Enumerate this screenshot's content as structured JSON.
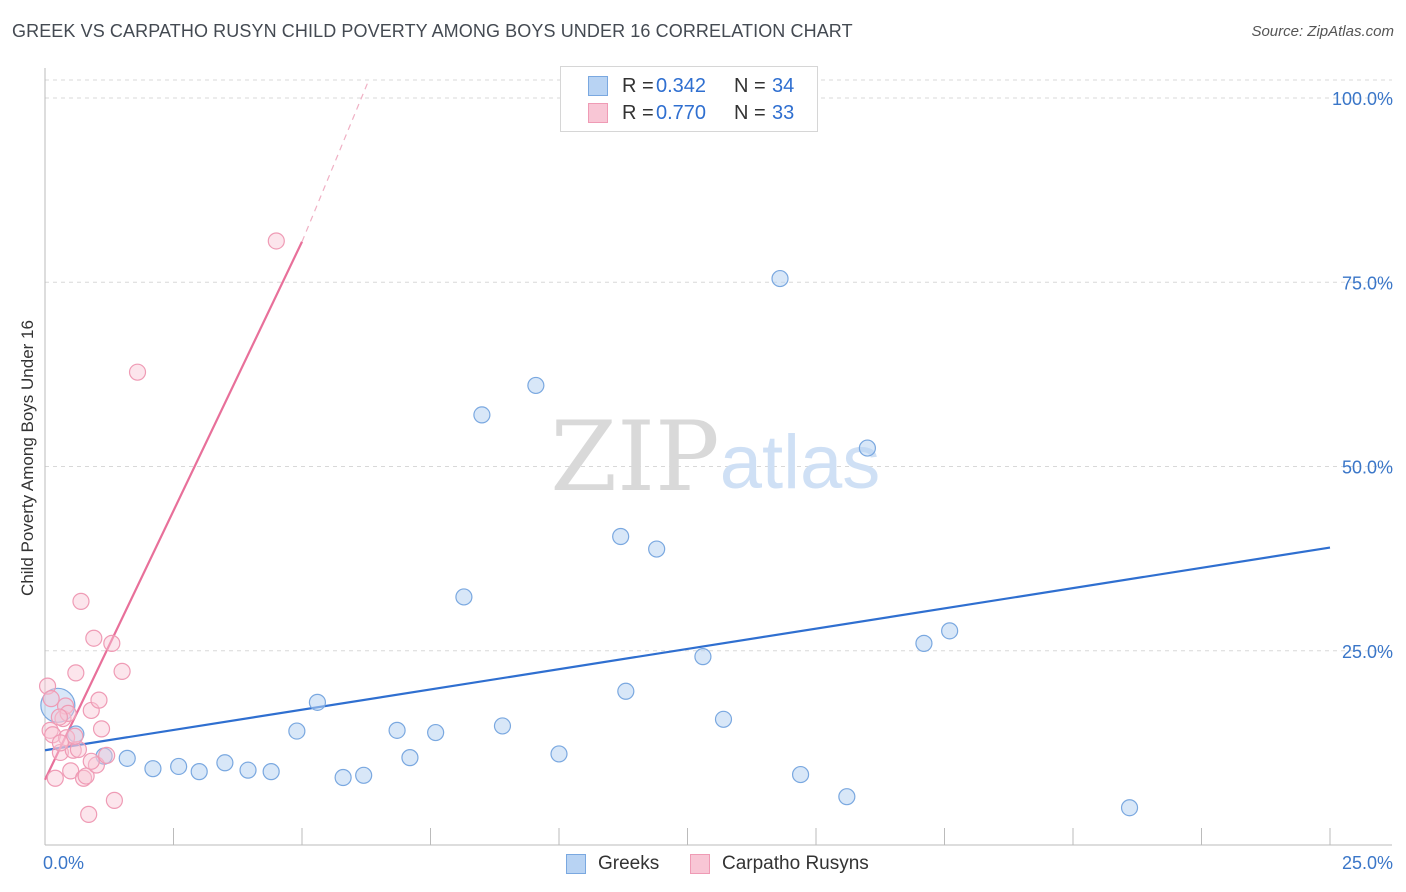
{
  "title": "GREEK VS CARPATHO RUSYN CHILD POVERTY AMONG BOYS UNDER 16 CORRELATION CHART",
  "source": "Source: ZipAtlas.com",
  "watermark": {
    "zip": "ZIP",
    "atlas": "atlas"
  },
  "legend": {
    "greeks": {
      "r_label": "R =",
      "r_value": "0.342",
      "n_label": "N =",
      "n_value": "34"
    },
    "rusyns": {
      "r_label": "R =",
      "r_value": "0.770",
      "n_label": "N =",
      "n_value": "33"
    }
  },
  "bottom_legend": {
    "greeks": "Greeks",
    "rusyns": "Carpatho Rusyns"
  },
  "colors": {
    "greeks_fill": "#b8d3f3",
    "greeks_stroke": "#7aa8e0",
    "greeks_line": "#2f6fd0",
    "rusyns_fill": "#f8c6d5",
    "rusyns_stroke": "#ef9bb5",
    "rusyns_line": "#e8709a",
    "tick_text": "#3a76c8"
  },
  "chart_data": {
    "type": "scatter",
    "title": "GREEK VS CARPATHO RUSYN CHILD POVERTY AMONG BOYS UNDER 16 CORRELATION CHART",
    "xlabel": "",
    "ylabel": "Child Poverty Among Boys Under 16",
    "xlim": [
      0,
      25
    ],
    "ylim": [
      0,
      100
    ],
    "x_tick_labels": [
      "0.0%",
      "25.0%"
    ],
    "y_ticks": [
      25,
      50,
      75,
      100
    ],
    "y_tick_labels": [
      "25.0%",
      "50.0%",
      "75.0%",
      "100.0%"
    ],
    "series": [
      {
        "name": "Greeks",
        "points": [
          [
            0.25,
            17.6
          ],
          [
            0.6,
            13.7
          ],
          [
            1.15,
            10.7
          ],
          [
            1.6,
            10.4
          ],
          [
            2.1,
            9.0
          ],
          [
            2.6,
            9.3
          ],
          [
            3.0,
            8.6
          ],
          [
            3.5,
            9.8
          ],
          [
            3.95,
            8.8
          ],
          [
            4.4,
            8.6
          ],
          [
            4.9,
            14.1
          ],
          [
            5.3,
            18.0
          ],
          [
            5.8,
            7.8
          ],
          [
            6.2,
            8.1
          ],
          [
            6.85,
            14.2
          ],
          [
            7.1,
            10.5
          ],
          [
            7.6,
            13.9
          ],
          [
            8.15,
            32.3
          ],
          [
            8.5,
            57.0
          ],
          [
            8.9,
            14.8
          ],
          [
            9.55,
            61.0
          ],
          [
            10.0,
            11.0
          ],
          [
            11.2,
            40.5
          ],
          [
            11.3,
            19.5
          ],
          [
            11.9,
            38.8
          ],
          [
            12.8,
            24.2
          ],
          [
            13.2,
            15.7
          ],
          [
            14.3,
            75.5
          ],
          [
            14.7,
            8.2
          ],
          [
            15.6,
            5.2
          ],
          [
            16.0,
            52.5
          ],
          [
            17.1,
            26.0
          ],
          [
            17.6,
            27.7
          ],
          [
            21.1,
            3.7
          ]
        ]
      },
      {
        "name": "Carpatho Rusyns",
        "points": [
          [
            0.05,
            20.2
          ],
          [
            0.1,
            14.2
          ],
          [
            0.15,
            13.6
          ],
          [
            0.2,
            7.7
          ],
          [
            0.3,
            11.2
          ],
          [
            0.35,
            15.8
          ],
          [
            0.4,
            17.5
          ],
          [
            0.45,
            16.5
          ],
          [
            0.5,
            8.7
          ],
          [
            0.55,
            11.5
          ],
          [
            0.6,
            22.0
          ],
          [
            0.65,
            11.6
          ],
          [
            0.7,
            31.7
          ],
          [
            0.75,
            7.7
          ],
          [
            0.8,
            8.0
          ],
          [
            0.85,
            2.8
          ],
          [
            0.9,
            16.9
          ],
          [
            0.95,
            26.7
          ],
          [
            1.0,
            9.5
          ],
          [
            1.05,
            18.3
          ],
          [
            1.1,
            14.4
          ],
          [
            1.2,
            10.8
          ],
          [
            1.3,
            26.0
          ],
          [
            1.35,
            4.7
          ],
          [
            1.5,
            22.2
          ],
          [
            1.8,
            62.8
          ],
          [
            4.5,
            80.6
          ],
          [
            0.12,
            18.5
          ],
          [
            0.28,
            16.0
          ],
          [
            0.42,
            13.2
          ],
          [
            0.58,
            13.4
          ],
          [
            0.9,
            10.0
          ],
          [
            0.3,
            12.5
          ]
        ]
      }
    ],
    "trendlines": [
      {
        "name": "Greeks",
        "from": [
          0,
          11.5
        ],
        "to": [
          25,
          39.0
        ],
        "dashed_extension": false
      },
      {
        "name": "Carpatho Rusyns",
        "from": [
          0.0,
          7.5
        ],
        "to": [
          5.0,
          80.5
        ],
        "dashed_to": [
          6.3,
          100.0
        ]
      }
    ],
    "large_marker": {
      "series": "Greeks",
      "point": [
        0.25,
        17.6
      ]
    }
  }
}
